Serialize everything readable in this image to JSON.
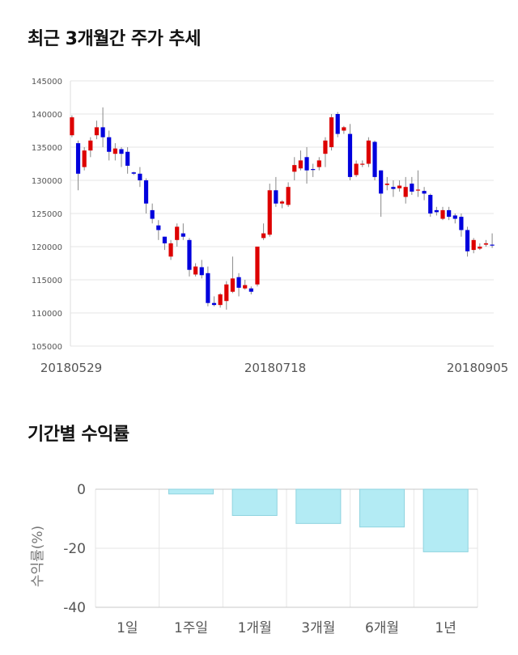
{
  "titles": {
    "price_trend": "최근 3개월간 주가 추세",
    "period_returns": "기간별 수익률"
  },
  "chart_data": [
    {
      "type": "candlestick",
      "y_ticks": [
        "145000",
        "140000",
        "135000",
        "130000",
        "125000",
        "120000",
        "115000",
        "110000",
        "105000"
      ],
      "ylim": [
        105000,
        145000
      ],
      "x_labels": [
        "20180529",
        "20180718",
        "20180905"
      ],
      "grid": true,
      "colors": {
        "up": "#dd0000",
        "down": "#0000dd",
        "wick": "#888888",
        "grid": "#e6e6e6"
      },
      "candles": [
        [
          136800,
          139500,
          136500,
          139800
        ],
        [
          135600,
          131000,
          128500,
          136000
        ],
        [
          132000,
          134500,
          131500,
          135000
        ],
        [
          134500,
          136000,
          133500,
          136500
        ],
        [
          136800,
          138000,
          136200,
          139000
        ],
        [
          138000,
          136500,
          135000,
          141000
        ],
        [
          136500,
          134300,
          133000,
          137500
        ],
        [
          134000,
          134800,
          133000,
          135600
        ],
        [
          134700,
          134000,
          132000,
          135000
        ],
        [
          134300,
          132200,
          131000,
          135000
        ],
        [
          131200,
          131000,
          130800,
          131300
        ],
        [
          131000,
          130000,
          129000,
          132000
        ],
        [
          130000,
          126500,
          125000,
          130300
        ],
        [
          125500,
          124200,
          123500,
          126500
        ],
        [
          123200,
          122500,
          121000,
          124000
        ],
        [
          121500,
          120500,
          119500,
          121500
        ],
        [
          118500,
          120500,
          118000,
          121000
        ],
        [
          121000,
          123000,
          120000,
          123500
        ],
        [
          122000,
          121500,
          121000,
          123500
        ],
        [
          121000,
          116500,
          115500,
          121300
        ],
        [
          115800,
          117000,
          115500,
          117500
        ],
        [
          116900,
          115700,
          115200,
          118000
        ],
        [
          116000,
          111500,
          111000,
          117000
        ],
        [
          111500,
          111200,
          111000,
          112500
        ],
        [
          111200,
          112800,
          110800,
          113000
        ],
        [
          111800,
          114300,
          110500,
          114800
        ],
        [
          113200,
          115200,
          113000,
          118500
        ],
        [
          115400,
          113800,
          112500,
          116000
        ],
        [
          113700,
          114200,
          113500,
          115000
        ],
        [
          113700,
          113200,
          112800,
          114000
        ],
        [
          114300,
          120000,
          114000,
          120000
        ],
        [
          121300,
          122000,
          121000,
          123500
        ],
        [
          121800,
          128500,
          121500,
          129500
        ],
        [
          128500,
          126500,
          126000,
          130500
        ],
        [
          126500,
          126800,
          125800,
          127000
        ],
        [
          126300,
          129000,
          126000,
          129700
        ],
        [
          131300,
          132300,
          130000,
          133500
        ],
        [
          131800,
          133000,
          131500,
          134500
        ],
        [
          133500,
          131500,
          129500,
          135000
        ],
        [
          131700,
          131600,
          130500,
          132500
        ],
        [
          132000,
          133000,
          131500,
          133500
        ],
        [
          134000,
          136000,
          132000,
          136500
        ],
        [
          135000,
          139500,
          134500,
          140000
        ],
        [
          140000,
          137000,
          136500,
          140300
        ],
        [
          137500,
          138000,
          137000,
          138200
        ],
        [
          137000,
          130500,
          130000,
          138500
        ],
        [
          130800,
          132500,
          130500,
          133000
        ],
        [
          132500,
          132500,
          132000,
          133000
        ],
        [
          132500,
          136000,
          132000,
          136500
        ],
        [
          135800,
          130500,
          130000,
          136000
        ],
        [
          131500,
          128000,
          124500,
          131500
        ],
        [
          129300,
          129500,
          128500,
          130500
        ],
        [
          129000,
          128700,
          127500,
          130000
        ],
        [
          128800,
          129200,
          128300,
          130000
        ],
        [
          127500,
          129000,
          126500,
          130500
        ],
        [
          129500,
          128300,
          127800,
          130500
        ],
        [
          128500,
          128600,
          127500,
          131500
        ],
        [
          128400,
          128000,
          127000,
          129000
        ],
        [
          127800,
          125000,
          124500,
          128000
        ],
        [
          125500,
          125200,
          124700,
          126000
        ],
        [
          124200,
          125500,
          124000,
          126000
        ],
        [
          125500,
          124500,
          124000,
          126000
        ],
        [
          124700,
          124200,
          123500,
          125000
        ],
        [
          124500,
          122500,
          121500,
          125000
        ],
        [
          122500,
          119300,
          118500,
          123000
        ],
        [
          119500,
          121000,
          119000,
          121300
        ],
        [
          119700,
          120000,
          119500,
          120500
        ],
        [
          120300,
          120500,
          120000,
          121000
        ],
        [
          120300,
          120200,
          119800,
          122000
        ]
      ]
    },
    {
      "type": "bar",
      "categories": [
        "1일",
        "1주일",
        "1개월",
        "3개월",
        "6개월",
        "1년"
      ],
      "values": [
        0,
        -1.6,
        -8.9,
        -11.6,
        -12.8,
        -21.2
      ],
      "ylim": [
        -40,
        0
      ],
      "y_ticks": [
        0,
        -20,
        -40
      ],
      "ylabel": "수익률(%)",
      "grid": true,
      "colors": {
        "bar_fill": "#b3ebf4",
        "bar_edge": "#8fd3df",
        "grid": "#e6e6e6",
        "axis": "#c8c8c8"
      }
    }
  ]
}
